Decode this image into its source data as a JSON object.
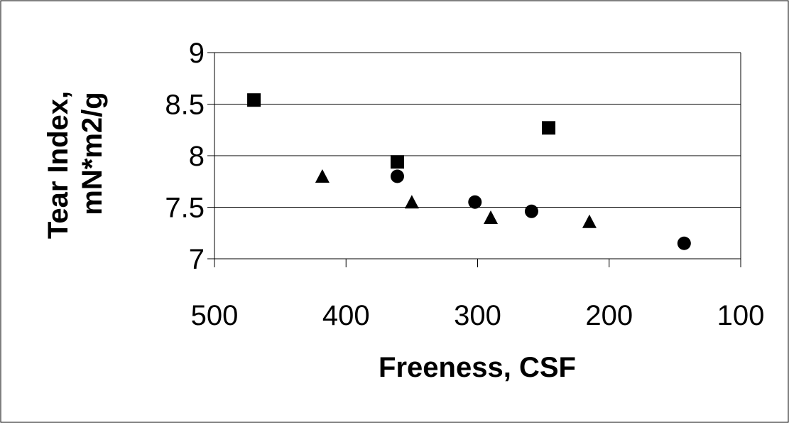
{
  "chart_data": {
    "type": "scatter",
    "title": "",
    "xlabel": "Freeness, CSF",
    "ylabel_lines": [
      "Tear Index,",
      "mN*m2/g"
    ],
    "xlim": [
      500,
      100
    ],
    "ylim": [
      7,
      9
    ],
    "x_ticks": [
      500,
      400,
      300,
      200,
      100
    ],
    "y_ticks": [
      7,
      7.5,
      8,
      8.5,
      9
    ],
    "grid": true,
    "legend": "none",
    "series": [
      {
        "marker": "square",
        "color": "#000000",
        "points": [
          {
            "x": 470,
            "y": 8.54
          },
          {
            "x": 361,
            "y": 7.94
          },
          {
            "x": 246,
            "y": 8.27
          }
        ]
      },
      {
        "marker": "triangle",
        "color": "#000000",
        "points": [
          {
            "x": 418,
            "y": 7.8
          },
          {
            "x": 350,
            "y": 7.55
          },
          {
            "x": 290,
            "y": 7.4
          },
          {
            "x": 215,
            "y": 7.36
          }
        ]
      },
      {
        "marker": "circle",
        "color": "#000000",
        "points": [
          {
            "x": 361,
            "y": 7.8
          },
          {
            "x": 302,
            "y": 7.55
          },
          {
            "x": 259,
            "y": 7.46
          },
          {
            "x": 143,
            "y": 7.15
          }
        ]
      }
    ]
  }
}
